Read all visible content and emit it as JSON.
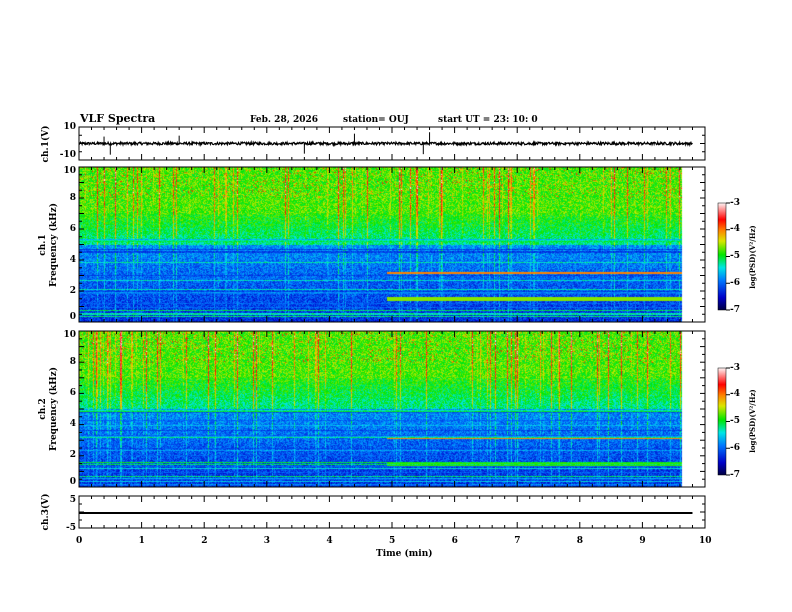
{
  "header": {
    "title": "VLF Spectra",
    "date": "Feb. 28, 2026",
    "station": "station= OUJ",
    "start": "start  UT =   23: 10: 0"
  },
  "chart_data": [
    {
      "type": "line",
      "panel": "ch1",
      "ylabel": "ch.1(V)",
      "ylim": [
        -10,
        10
      ],
      "ytick_labels": [
        "10",
        "-10"
      ],
      "xlim": [
        0,
        10
      ],
      "series": [
        {
          "name": "ch.1 waveform",
          "baseline": 0,
          "noise_amplitude": 1,
          "spike_times_min": [
            0.4,
            0.5,
            1.6,
            3.6,
            4.4,
            5.5,
            5.6
          ]
        }
      ]
    },
    {
      "type": "heatmap",
      "panel": "ch1-spectrogram",
      "ylabel": "ch.1\nFrequency  (kHz)",
      "ylabel_line1": "ch.1",
      "ylabel_line2": "Frequency  (kHz)",
      "ylim": [
        0,
        10
      ],
      "ytick_labels": [
        "0",
        "2",
        "4",
        "6",
        "8",
        "10"
      ],
      "xlim": [
        0,
        10
      ],
      "colorbar": {
        "label": "log(PSD)(V²/Hz)",
        "range": [
          -7,
          -3
        ],
        "tick_labels": [
          "-3",
          "-4",
          "-5",
          "-6",
          "-7"
        ]
      },
      "features": {
        "high_band_khz": [
          7,
          10
        ],
        "mid_band_khz": [
          5,
          7
        ],
        "low_band_khz": [
          0,
          5
        ],
        "tone_after_min": 5,
        "tone_khz": 1.5
      }
    },
    {
      "type": "heatmap",
      "panel": "ch2-spectrogram",
      "ylabel_line1": "ch.2",
      "ylabel_line2": "Frequency  (kHz)",
      "ylim": [
        0,
        10
      ],
      "ytick_labels": [
        "0",
        "2",
        "4",
        "6",
        "8",
        "10"
      ],
      "xlim": [
        0,
        10
      ],
      "colorbar": {
        "label": "log(PSD)(V²/Hz)",
        "range": [
          -7,
          -3
        ],
        "tick_labels": [
          "-3",
          "-4",
          "-5",
          "-6",
          "-7"
        ]
      }
    },
    {
      "type": "line",
      "panel": "ch3",
      "ylabel": "ch.3(V)",
      "ylim": [
        -5,
        5
      ],
      "ytick_labels": [
        "5",
        "-5"
      ],
      "xlim": [
        0,
        10
      ],
      "series": [
        {
          "name": "ch.3",
          "value": -0.5
        }
      ]
    }
  ],
  "xaxis": {
    "label": "Time  (min)",
    "tick_labels": [
      "0",
      "1",
      "2",
      "3",
      "4",
      "5",
      "6",
      "7",
      "8",
      "9",
      "10"
    ],
    "data_end_min": 9.8
  }
}
